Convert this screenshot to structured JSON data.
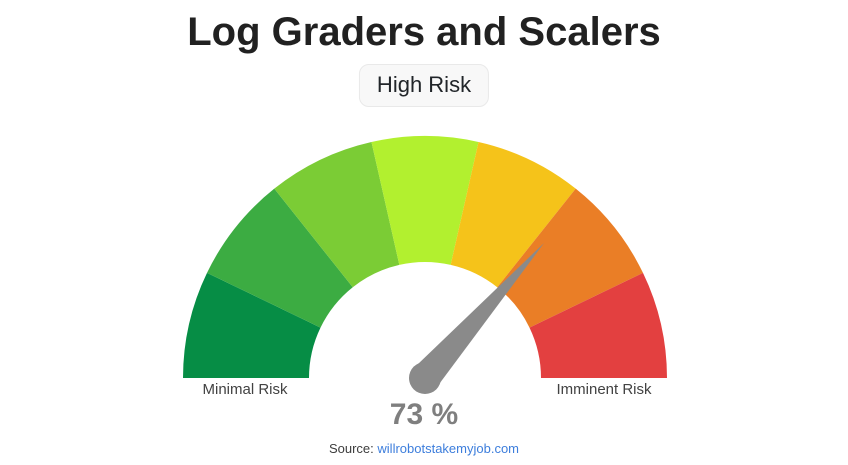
{
  "chart_data": {
    "type": "gauge",
    "title": "Log Graders and Scalers",
    "risk_category": "High Risk",
    "value_percent": 73,
    "value_label": "73 %",
    "range_min": 0,
    "range_max": 100,
    "min_label": "Minimal Risk",
    "max_label": "Imminent Risk",
    "layout": "semicircle, 7 equal colored segments left-to-right green to red, gray needle from bottom center",
    "segments": [
      {
        "from_percent": 0,
        "to_percent": 14.3,
        "color": "#068D45",
        "name": "dark-green"
      },
      {
        "from_percent": 14.3,
        "to_percent": 28.6,
        "color": "#3CAC42",
        "name": "medium-green"
      },
      {
        "from_percent": 28.6,
        "to_percent": 42.9,
        "color": "#7BCC35",
        "name": "light-green"
      },
      {
        "from_percent": 42.9,
        "to_percent": 57.1,
        "color": "#B2F02F",
        "name": "lime"
      },
      {
        "from_percent": 57.1,
        "to_percent": 71.4,
        "color": "#F5C31A",
        "name": "gold"
      },
      {
        "from_percent": 71.4,
        "to_percent": 85.7,
        "color": "#EA7E26",
        "name": "orange"
      },
      {
        "from_percent": 85.7,
        "to_percent": 100,
        "color": "#E34040",
        "name": "red"
      }
    ],
    "needle_color": "#8A8A8A",
    "value_text_color": "#7F7F7F"
  },
  "footer": {
    "source_label": "Source:",
    "source_link": "willrobotstakemyjob.com",
    "link_color": "#3D7EDC"
  }
}
